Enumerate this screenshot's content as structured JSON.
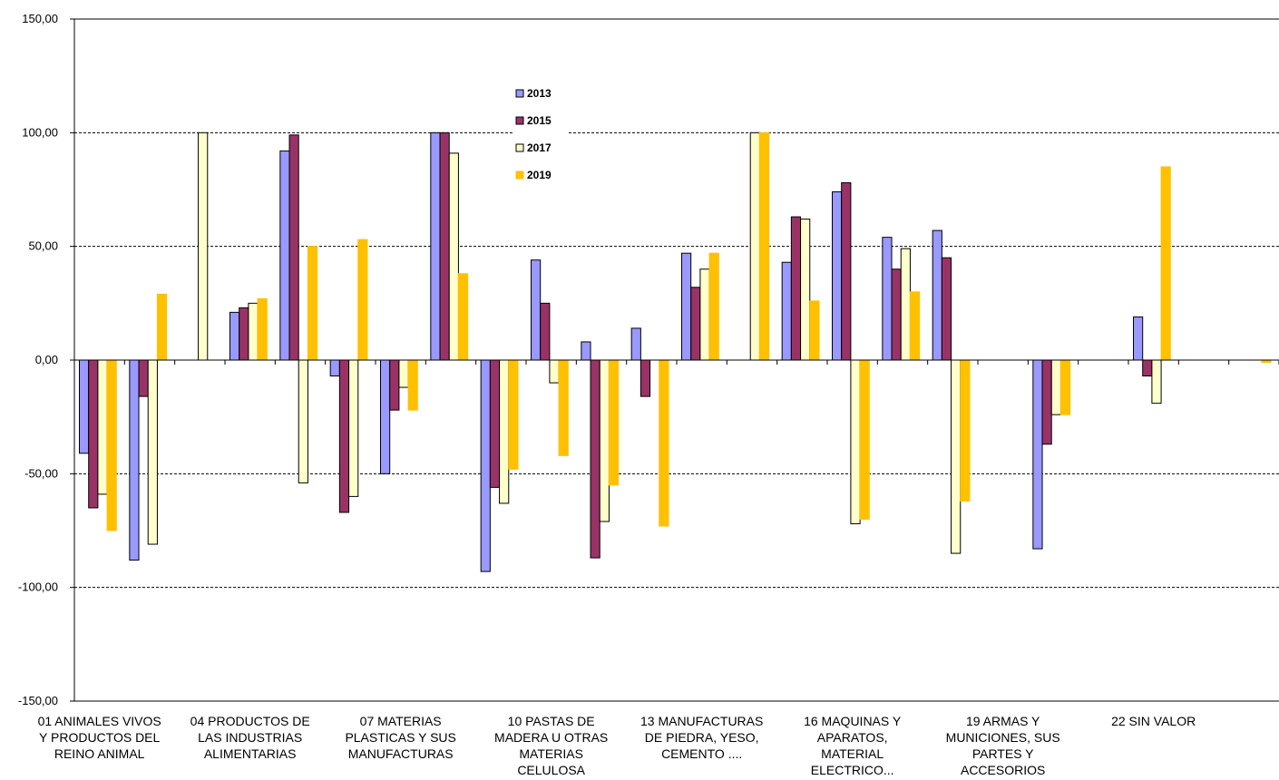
{
  "chart_data": {
    "type": "bar",
    "ylim": [
      -150,
      150
    ],
    "yticks": [
      "150,00",
      "100,00",
      "50,00",
      "0,00",
      "-50,00",
      "-100,00",
      "-150,00"
    ],
    "ytick_values": [
      150,
      100,
      50,
      0,
      -50,
      -100,
      -150
    ],
    "grid": true,
    "legend_position": "top-center",
    "category_labels": [
      [
        "01 ANIMALES VIVOS",
        "Y PRODUCTOS DEL",
        "REINO ANIMAL"
      ],
      [
        "04 PRODUCTOS DE",
        "LAS INDUSTRIAS",
        "ALIMENTARIAS"
      ],
      [
        "07 MATERIAS",
        "PLASTICAS Y SUS",
        "MANUFACTURAS"
      ],
      [
        "10 PASTAS DE",
        "MADERA U OTRAS",
        "MATERIAS",
        "CELULOSA"
      ],
      [
        "13 MANUFACTURAS",
        "DE PIEDRA, YESO,",
        "CEMENTO ...."
      ],
      [
        "16 MAQUINAS Y",
        "APARATOS,",
        "MATERIAL",
        "ELECTRICO..."
      ],
      [
        "19 ARMAS Y",
        "MUNICIONES, SUS",
        "PARTES Y",
        "ACCESORIOS"
      ],
      [
        "22 SIN VALOR"
      ]
    ],
    "category_count": 24,
    "label_every": 3,
    "series": [
      {
        "name": "2013",
        "color": "#9999ff",
        "values": [
          -41,
          -88,
          null,
          21,
          92,
          -7,
          -50,
          100,
          -93,
          44,
          8,
          14,
          47,
          null,
          43,
          74,
          54,
          57,
          null,
          -83,
          null,
          19,
          null,
          null
        ]
      },
      {
        "name": "2015",
        "color": "#993366",
        "values": [
          -65,
          -16,
          null,
          23,
          99,
          -67,
          -22,
          100,
          -56,
          25,
          -87,
          -16,
          32,
          null,
          63,
          78,
          40,
          45,
          null,
          -37,
          null,
          -7,
          null,
          null
        ]
      },
      {
        "name": "2017",
        "color": "#ffffcc",
        "values": [
          -59,
          -81,
          100,
          25,
          -54,
          -60,
          -12,
          91,
          -63,
          -10,
          -71,
          null,
          40,
          100,
          62,
          -72,
          49,
          -85,
          null,
          -24,
          null,
          -19,
          null,
          null
        ]
      },
      {
        "name": "2019",
        "color": "#ffc000",
        "values": [
          -75,
          29,
          null,
          27,
          50,
          53,
          -22,
          38,
          -48,
          -42,
          -55,
          -73,
          47,
          100,
          26,
          -70,
          30,
          -62,
          null,
          -24,
          null,
          85,
          null,
          -1
        ]
      }
    ]
  }
}
